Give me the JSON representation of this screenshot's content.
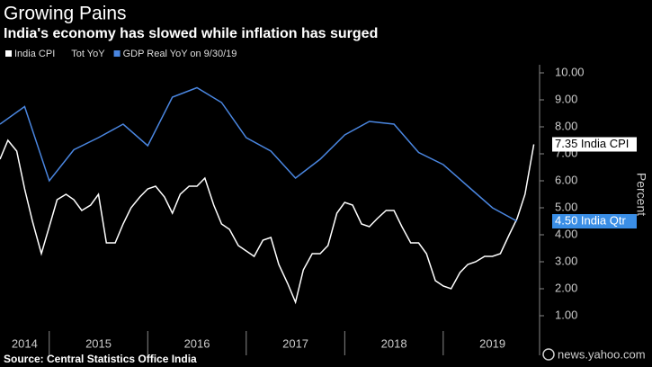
{
  "chart_data": {
    "type": "line",
    "title": "Growing Pains",
    "subtitle": "India's economy has slowed while inflation has surged",
    "y_label": "Percent",
    "source": "Source: Central Statistics Office India",
    "credit": "news.yahoo.com",
    "legend_extra": "Tot YoY",
    "xlim": [
      2014.5,
      2019.96
    ],
    "xticks": [
      {
        "value": 2014.5,
        "label": "2014"
      },
      {
        "value": 2015.5,
        "label": "2015"
      },
      {
        "value": 2016.5,
        "label": "2016"
      },
      {
        "value": 2017.5,
        "label": "2017"
      },
      {
        "value": 2018.5,
        "label": "2018"
      },
      {
        "value": 2019.5,
        "label": "2019"
      }
    ],
    "ylim": [
      0.5,
      10.3
    ],
    "yticks": [
      {
        "value": 1,
        "label": "1.00"
      },
      {
        "value": 2,
        "label": "2.00"
      },
      {
        "value": 3,
        "label": "3.00"
      },
      {
        "value": 4,
        "label": "4.00"
      },
      {
        "value": 5,
        "label": "5.00"
      },
      {
        "value": 6,
        "label": "6.00"
      },
      {
        "value": 7,
        "label": "7.00"
      },
      {
        "value": 8,
        "label": "8.00"
      },
      {
        "value": 9,
        "label": "9.00"
      },
      {
        "value": 10,
        "label": "10.00"
      }
    ],
    "series": [
      {
        "name": "India CPI",
        "color": "#ffffff",
        "x": [
          2014.5,
          2014.58,
          2014.67,
          2014.75,
          2014.83,
          2014.92,
          2015.0,
          2015.08,
          2015.17,
          2015.25,
          2015.33,
          2015.42,
          2015.5,
          2015.58,
          2015.67,
          2015.75,
          2015.83,
          2015.92,
          2016.0,
          2016.08,
          2016.17,
          2016.25,
          2016.33,
          2016.42,
          2016.5,
          2016.58,
          2016.67,
          2016.75,
          2016.83,
          2016.92,
          2017.0,
          2017.08,
          2017.17,
          2017.25,
          2017.33,
          2017.42,
          2017.5,
          2017.58,
          2017.67,
          2017.75,
          2017.83,
          2017.92,
          2018.0,
          2018.08,
          2018.17,
          2018.25,
          2018.33,
          2018.42,
          2018.5,
          2018.58,
          2018.67,
          2018.75,
          2018.83,
          2018.92,
          2019.0,
          2019.08,
          2019.17,
          2019.25,
          2019.33,
          2019.42,
          2019.5,
          2019.58,
          2019.67,
          2019.75,
          2019.83,
          2019.92
        ],
        "values": [
          6.8,
          7.5,
          7.1,
          5.7,
          4.5,
          3.3,
          4.3,
          5.3,
          5.5,
          5.3,
          4.9,
          5.1,
          5.5,
          3.7,
          3.7,
          4.4,
          5.0,
          5.4,
          5.7,
          5.8,
          5.4,
          4.8,
          5.5,
          5.8,
          5.8,
          6.1,
          5.1,
          4.4,
          4.2,
          3.6,
          3.4,
          3.2,
          3.8,
          3.9,
          2.9,
          2.2,
          1.5,
          2.7,
          3.3,
          3.3,
          3.6,
          4.8,
          5.2,
          5.1,
          4.4,
          4.3,
          4.6,
          4.9,
          4.9,
          4.3,
          3.7,
          3.7,
          3.3,
          2.3,
          2.1,
          2.0,
          2.6,
          2.9,
          3.0,
          3.2,
          3.2,
          3.3,
          4.0,
          4.6,
          5.5,
          7.35
        ],
        "end_label": {
          "value": 7.35,
          "label": "7.35 India CPI"
        }
      },
      {
        "name": "GDP Real YoY on 9/30/19",
        "color": "#4a86e0",
        "x": [
          2014.5,
          2014.75,
          2015.0,
          2015.25,
          2015.5,
          2015.75,
          2016.0,
          2016.25,
          2016.5,
          2016.75,
          2017.0,
          2017.25,
          2017.5,
          2017.75,
          2018.0,
          2018.25,
          2018.5,
          2018.75,
          2019.0,
          2019.25,
          2019.5,
          2019.75
        ],
        "values": [
          8.1,
          8.75,
          6.0,
          7.15,
          7.6,
          8.1,
          7.3,
          9.1,
          9.45,
          8.9,
          7.6,
          7.1,
          6.1,
          6.8,
          7.7,
          8.2,
          8.1,
          7.05,
          6.6,
          5.8,
          5.0,
          4.5
        ],
        "end_label": {
          "value": 4.5,
          "label": "4.50 India Qtr"
        }
      }
    ]
  }
}
